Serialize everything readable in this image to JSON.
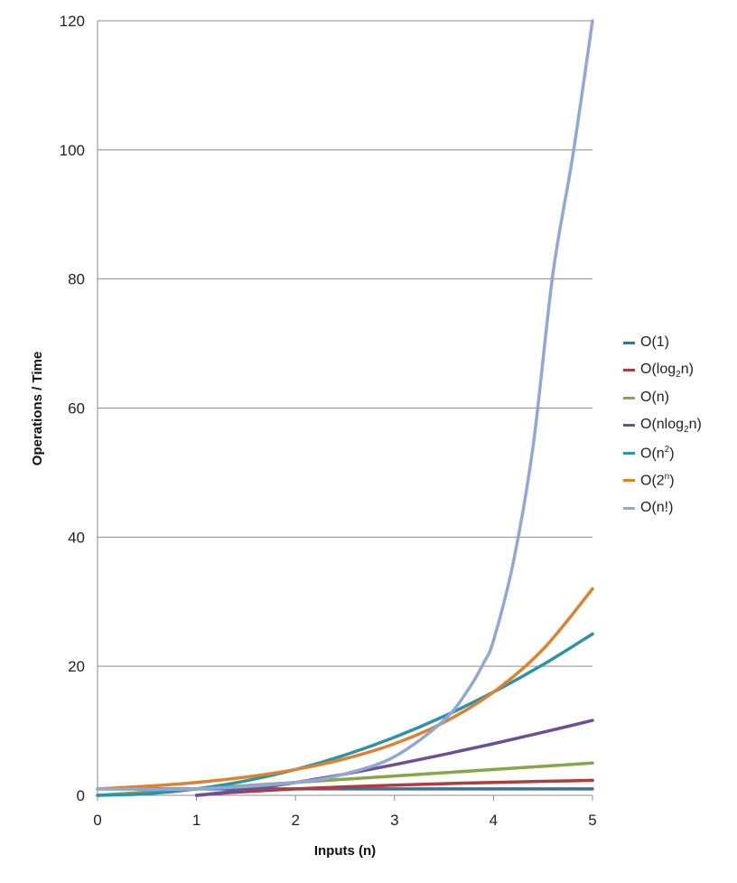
{
  "chart_data": {
    "type": "line",
    "title": "",
    "xlabel": "Inputs (n)",
    "ylabel": "Operations / Time",
    "xlim": [
      0,
      5
    ],
    "ylim": [
      0,
      120
    ],
    "xticks": [
      "0",
      "1",
      "2",
      "3",
      "4",
      "5"
    ],
    "yticks": [
      "0",
      "20",
      "40",
      "60",
      "80",
      "100",
      "120"
    ],
    "grid": "horizontal",
    "legend_position": "right",
    "series": [
      {
        "name": "O(1)",
        "label_base": "O(1)",
        "label_script": "",
        "label_script_type": "",
        "label_end": "",
        "color": "#3c6ea8",
        "x": [
          0,
          0.5,
          1,
          1.5,
          2,
          2.5,
          3,
          3.5,
          4,
          4.5,
          5
        ],
        "y": [
          1,
          1,
          1,
          1,
          1,
          1,
          1,
          1,
          1,
          1,
          1
        ]
      },
      {
        "name": "O(log2n)",
        "label_base": "O(log",
        "label_script": "2",
        "label_script_type": "sub",
        "label_end": "n)",
        "color": "#b23b3b",
        "x": [
          1,
          1.25,
          1.5,
          2,
          2.5,
          3,
          3.5,
          4,
          4.5,
          5
        ],
        "y": [
          0,
          0.32,
          0.58,
          1,
          1.32,
          1.58,
          1.81,
          2,
          2.17,
          2.32
        ]
      },
      {
        "name": "O(n)",
        "label_base": "O(n)",
        "label_script": "",
        "label_script_type": "",
        "label_end": "",
        "color": "#86a844",
        "x": [
          0,
          1,
          2,
          3,
          4,
          5
        ],
        "y": [
          0,
          1,
          2,
          3,
          4,
          5
        ]
      },
      {
        "name": "O(nlog2n)",
        "label_base": "O(nlog",
        "label_script": "2",
        "label_script_type": "sub",
        "label_end": "n)",
        "color": "#6c4f96",
        "x": [
          1,
          1.25,
          1.5,
          2,
          2.5,
          3,
          3.5,
          4,
          4.5,
          5
        ],
        "y": [
          0,
          0.4,
          0.88,
          2,
          3.3,
          4.75,
          6.33,
          8,
          9.77,
          11.61
        ]
      },
      {
        "name": "O(n2)",
        "label_base": "O(n",
        "label_script": "2",
        "label_script_type": "sup",
        "label_end": ")",
        "color": "#2f93a8",
        "x": [
          0,
          0.5,
          1,
          1.5,
          2,
          2.5,
          3,
          3.5,
          4,
          4.5,
          5
        ],
        "y": [
          0,
          0.25,
          1,
          2.25,
          4,
          6.25,
          9,
          12.25,
          16,
          20.25,
          25
        ]
      },
      {
        "name": "O(2n)",
        "label_base": "O(2",
        "label_script": "n",
        "label_script_type": "sup",
        "label_end": ")",
        "color": "#e0812e",
        "x": [
          0,
          0.5,
          1,
          1.5,
          2,
          2.5,
          3,
          3.5,
          4,
          4.5,
          5
        ],
        "y": [
          1,
          1.41,
          2,
          2.83,
          4,
          5.66,
          8,
          11.31,
          16,
          22.63,
          32
        ]
      },
      {
        "name": "O(n!)",
        "label_base": "O(n!)",
        "label_script": "",
        "label_script_type": "",
        "label_end": "",
        "color": "#8fa8d8",
        "x": [
          0,
          1,
          2,
          2.5,
          3,
          3.5,
          3.75,
          3.9,
          4,
          4.2,
          4.4,
          4.6,
          4.8,
          5
        ],
        "y": [
          1,
          1,
          2,
          3.32,
          6,
          11.63,
          16.5,
          20.5,
          24,
          36.1,
          54.1,
          80.8,
          99,
          120
        ]
      }
    ]
  }
}
